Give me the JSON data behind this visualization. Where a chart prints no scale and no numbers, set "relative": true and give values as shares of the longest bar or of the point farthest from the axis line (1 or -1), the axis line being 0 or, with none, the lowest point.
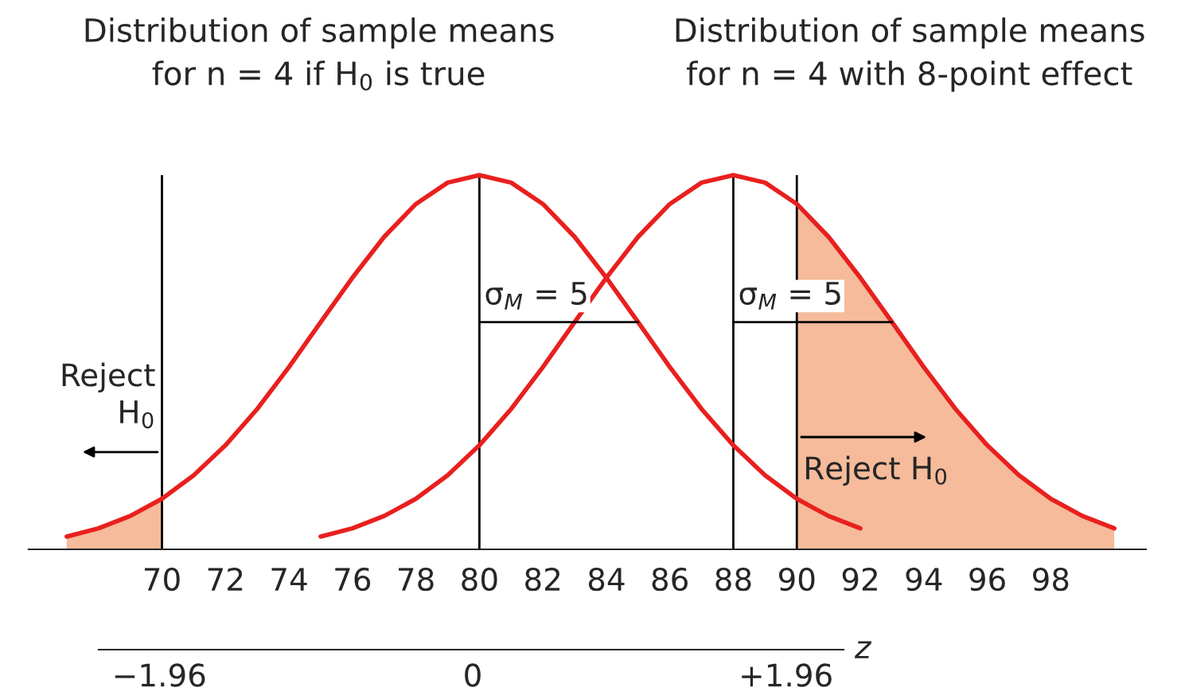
{
  "chart_data": {
    "type": "line",
    "relative": true,
    "xlim": [
      65.8,
      101
    ],
    "xticks": [
      70,
      72,
      74,
      76,
      78,
      80,
      82,
      84,
      86,
      88,
      90,
      92,
      94,
      96,
      98
    ],
    "x2lim": [
      -2.34,
      2.32
    ],
    "x2ticks": [
      {
        "value": -1.96,
        "label": "−1.96"
      },
      0,
      {
        "value": 1.96,
        "label": "+1.96"
      }
    ],
    "x2label": "z",
    "series": [
      {
        "type": "area",
        "color": "#f5bb9b",
        "x": [
          67,
          68,
          69,
          70
        ],
        "values": [
          0.034,
          0.056,
          0.089,
          0.135
        ]
      },
      {
        "type": "area",
        "color": "#f5bb9b",
        "x": [
          90,
          91,
          92,
          93,
          94,
          95,
          96,
          97,
          98,
          99,
          100
        ],
        "values": [
          0.923,
          0.835,
          0.726,
          0.607,
          0.487,
          0.375,
          0.278,
          0.198,
          0.135,
          0.089,
          0.056
        ]
      },
      {
        "color": "#e8201e",
        "x": [
          67,
          68,
          69,
          70,
          71,
          72,
          73,
          74,
          75,
          76,
          77,
          78,
          79,
          80,
          81,
          82,
          83,
          84,
          85,
          86,
          87,
          88,
          89,
          90,
          91,
          92
        ],
        "values": [
          0.034,
          0.056,
          0.089,
          0.135,
          0.198,
          0.278,
          0.375,
          0.487,
          0.607,
          0.726,
          0.835,
          0.923,
          0.98,
          1,
          0.98,
          0.923,
          0.835,
          0.726,
          0.607,
          0.487,
          0.375,
          0.278,
          0.198,
          0.135,
          0.089,
          0.056
        ]
      },
      {
        "color": "#e8201e",
        "x": [
          75,
          76,
          77,
          78,
          79,
          80,
          81,
          82,
          83,
          84,
          85,
          86,
          87,
          88,
          89,
          90,
          91,
          92,
          93,
          94,
          95,
          96,
          97,
          98,
          99,
          100
        ],
        "values": [
          0.034,
          0.056,
          0.089,
          0.135,
          0.198,
          0.278,
          0.375,
          0.487,
          0.607,
          0.726,
          0.835,
          0.923,
          0.98,
          1,
          0.98,
          0.923,
          0.835,
          0.726,
          0.607,
          0.487,
          0.375,
          0.278,
          0.198,
          0.135,
          0.089,
          0.056
        ]
      },
      {
        "color": "#000000",
        "x": [
          80,
          85
        ],
        "values": [
          0.607,
          0.607
        ]
      },
      {
        "color": "#000000",
        "x": [
          88,
          93
        ],
        "values": [
          0.607,
          0.607
        ]
      }
    ],
    "ref_lines": [
      {
        "axis": "x",
        "value": 70,
        "color": "#000000"
      },
      {
        "axis": "x",
        "value": 80,
        "color": "#000000"
      },
      {
        "axis": "x",
        "value": 88,
        "color": "#000000"
      },
      {
        "axis": "x",
        "value": 90,
        "color": "#000000"
      }
    ],
    "annotations": [
      "Distribution of sample means\nfor n = 4 if H$_{0}$ is true",
      "Distribution of sample means\nfor n = 4 with 8-point effect",
      {
        "text": "σ$_{M}$ = 5",
        "x": 80,
        "y": 0.607
      },
      {
        "text": "σ$_{M}$ = 5",
        "x": 88,
        "y": 0.607
      },
      {
        "text": "Reject\nH$_{0}$",
        "x": 70,
        "y": 0.26
      },
      {
        "text": "Reject H$_{0}$",
        "x": 90,
        "y": 0.3
      }
    ],
    "grid": false
  }
}
